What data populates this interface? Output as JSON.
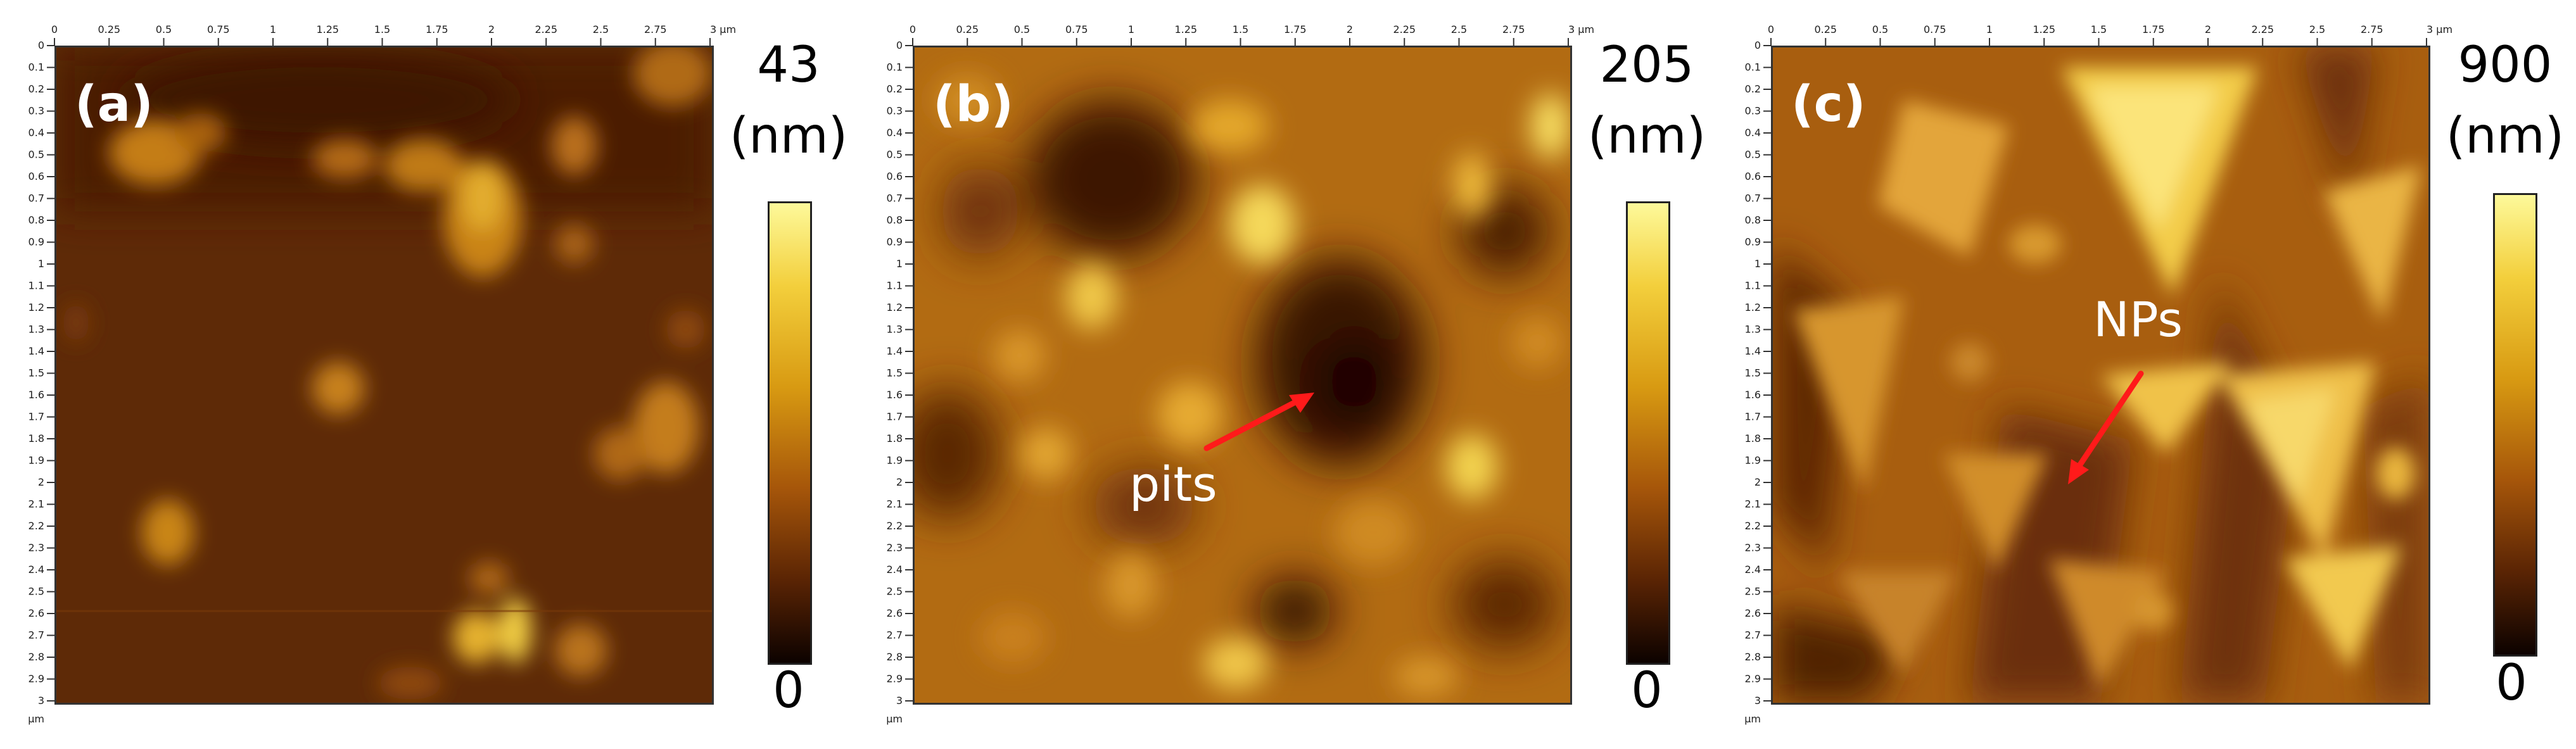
{
  "axis_ticks": [
    "0",
    "0.25",
    "0.5",
    "0.75",
    "1",
    "1.25",
    "1.5",
    "1.75",
    "2",
    "2.25",
    "2.5",
    "2.75",
    "3 μm"
  ],
  "y_ticks": [
    "0",
    "0.1",
    "0.2",
    "0.3",
    "0.4",
    "0.5",
    "0.6",
    "0.7",
    "0.8",
    "0.9",
    "1",
    "1.1",
    "1.2",
    "1.3",
    "1.4",
    "1.5",
    "1.6",
    "1.7",
    "1.8",
    "1.9",
    "2",
    "2.1",
    "2.2",
    "2.3",
    "2.4",
    "2.5",
    "2.6",
    "2.7",
    "2.8",
    "2.9",
    "3"
  ],
  "y_unit": "μm",
  "colormap_colors": [
    "#0c0200",
    "#5a2404",
    "#a6560a",
    "#d89a12",
    "#f3cf3c",
    "#fdf99a"
  ],
  "panels": [
    {
      "label": "(a)",
      "cb_max": "43",
      "cb_unit": "(nm)",
      "cb_min": "0",
      "annotation": ""
    },
    {
      "label": "(b)",
      "cb_max": "205",
      "cb_unit": "(nm)",
      "cb_min": "0",
      "annotation": "pits",
      "arrow_color": "#ff1a1a"
    },
    {
      "label": "(c)",
      "cb_max": "900",
      "cb_unit": "(nm)",
      "cb_min": "0",
      "annotation": "NPs",
      "arrow_color": "#ff1a1a"
    }
  ]
}
